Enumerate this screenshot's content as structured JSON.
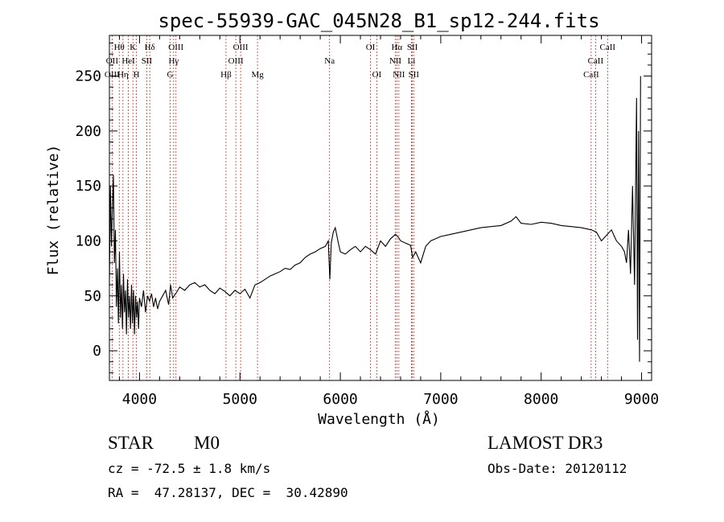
{
  "chart_data": {
    "type": "line",
    "title": "spec-55939-GAC_045N28_B1_sp12-244.fits",
    "xlabel": "Wavelength (Å)",
    "ylabel": "Flux (relative)",
    "xlim": [
      3700,
      9100
    ],
    "ylim": [
      -27,
      287
    ],
    "x_ticks": [
      4000,
      5000,
      6000,
      7000,
      8000,
      9000
    ],
    "y_ticks": [
      0,
      50,
      100,
      150,
      200,
      250
    ],
    "grid": false,
    "line_color": "#000000",
    "marker_color": "#c0392b",
    "spectral_lines": [
      {
        "label": "Hθ",
        "wavelength": 3798,
        "row": 0
      },
      {
        "label": "K",
        "wavelength": 3934,
        "row": 0
      },
      {
        "label": "Hδ",
        "wavelength": 4102,
        "row": 0
      },
      {
        "label": "OIII",
        "wavelength": 4363,
        "row": 0
      },
      {
        "label": "OIII",
        "wavelength": 5007,
        "row": 0
      },
      {
        "label": "OI",
        "wavelength": 6300,
        "row": 0
      },
      {
        "label": "Hα",
        "wavelength": 6563,
        "row": 0
      },
      {
        "label": "SII",
        "wavelength": 6717,
        "row": 0
      },
      {
        "label": "CaII",
        "wavelength": 8662,
        "row": 0
      },
      {
        "label": "OII",
        "wavelength": 3727,
        "row": 1
      },
      {
        "label": "HeI",
        "wavelength": 3889,
        "row": 1
      },
      {
        "label": "SII",
        "wavelength": 4072,
        "row": 1
      },
      {
        "label": "Hγ",
        "wavelength": 4340,
        "row": 1
      },
      {
        "label": "OIII",
        "wavelength": 4959,
        "row": 1
      },
      {
        "label": "Na",
        "wavelength": 5893,
        "row": 1
      },
      {
        "label": "NII",
        "wavelength": 6548,
        "row": 1
      },
      {
        "label": "Li",
        "wavelength": 6708,
        "row": 1
      },
      {
        "label": "CaII",
        "wavelength": 8542,
        "row": 1
      },
      {
        "label": "OIII",
        "wavelength": 3727,
        "row": 2
      },
      {
        "label": "Hη",
        "wavelength": 3835,
        "row": 2
      },
      {
        "label": "H",
        "wavelength": 3969,
        "row": 2
      },
      {
        "label": "G",
        "wavelength": 4305,
        "row": 2
      },
      {
        "label": "Hβ",
        "wavelength": 4861,
        "row": 2
      },
      {
        "label": "Mg",
        "wavelength": 5175,
        "row": 2
      },
      {
        "label": "OI",
        "wavelength": 6363,
        "row": 2
      },
      {
        "label": "NII",
        "wavelength": 6583,
        "row": 2
      },
      {
        "label": "SII",
        "wavelength": 6731,
        "row": 2
      },
      {
        "label": "CaII",
        "wavelength": 8498,
        "row": 2
      }
    ],
    "series": [
      {
        "x": [
          3700,
          3710,
          3720,
          3730,
          3740,
          3750,
          3760,
          3770,
          3780,
          3790,
          3800,
          3810,
          3820,
          3830,
          3840,
          3850,
          3860,
          3870,
          3880,
          3890,
          3900,
          3910,
          3920,
          3930,
          3940,
          3950,
          3960,
          3970,
          3980,
          3990,
          4000,
          4020,
          4040,
          4060,
          4080,
          4100,
          4120,
          4140,
          4160,
          4180,
          4200,
          4230,
          4260,
          4290,
          4310,
          4330,
          4360,
          4400,
          4450,
          4500,
          4550,
          4600,
          4650,
          4700,
          4750,
          4800,
          4850,
          4900,
          4950,
          5000,
          5050,
          5100,
          5150,
          5200,
          5250,
          5300,
          5350,
          5400,
          5450,
          5500,
          5550,
          5600,
          5650,
          5700,
          5750,
          5800,
          5850,
          5880,
          5895,
          5910,
          5930,
          5950,
          5980,
          6000,
          6050,
          6100,
          6150,
          6200,
          6250,
          6300,
          6350,
          6400,
          6450,
          6500,
          6550,
          6580,
          6600,
          6650,
          6700,
          6720,
          6750,
          6800,
          6850,
          6900,
          6950,
          7000,
          7100,
          7200,
          7300,
          7400,
          7500,
          7600,
          7700,
          7750,
          7800,
          7900,
          8000,
          8100,
          8200,
          8300,
          8400,
          8500,
          8550,
          8600,
          8650,
          8700,
          8750,
          8800,
          8830,
          8850,
          8870,
          8890,
          8910,
          8930,
          8950,
          8960,
          8970,
          8980,
          8990
        ],
        "y": [
          60,
          150,
          95,
          130,
          160,
          80,
          110,
          40,
          75,
          25,
          90,
          30,
          60,
          20,
          70,
          35,
          55,
          15,
          65,
          30,
          50,
          20,
          60,
          25,
          55,
          15,
          50,
          30,
          45,
          20,
          48,
          40,
          55,
          35,
          50,
          45,
          52,
          40,
          48,
          38,
          45,
          50,
          55,
          42,
          60,
          48,
          52,
          58,
          55,
          60,
          62,
          58,
          60,
          55,
          52,
          57,
          54,
          50,
          55,
          52,
          56,
          48,
          60,
          62,
          65,
          68,
          70,
          72,
          75,
          74,
          78,
          80,
          85,
          88,
          90,
          93,
          95,
          100,
          65,
          98,
          108,
          112,
          98,
          90,
          88,
          92,
          95,
          90,
          95,
          92,
          88,
          100,
          95,
          102,
          106,
          103,
          100,
          98,
          96,
          85,
          90,
          80,
          95,
          100,
          102,
          104,
          106,
          108,
          110,
          112,
          113,
          114,
          118,
          122,
          116,
          115,
          117,
          116,
          114,
          113,
          112,
          110,
          108,
          100,
          105,
          110,
          100,
          95,
          90,
          80,
          110,
          70,
          150,
          60,
          230,
          10,
          200,
          -10,
          250
        ]
      }
    ]
  },
  "footer": {
    "object_class": "STAR",
    "subclass": "M0",
    "cz": "cz = -72.5 ± 1.8 km/s",
    "coords": "RA =  47.28137, DEC =  30.42890",
    "survey": "LAMOST DR3",
    "obs_date": "Obs-Date: 20120112"
  }
}
